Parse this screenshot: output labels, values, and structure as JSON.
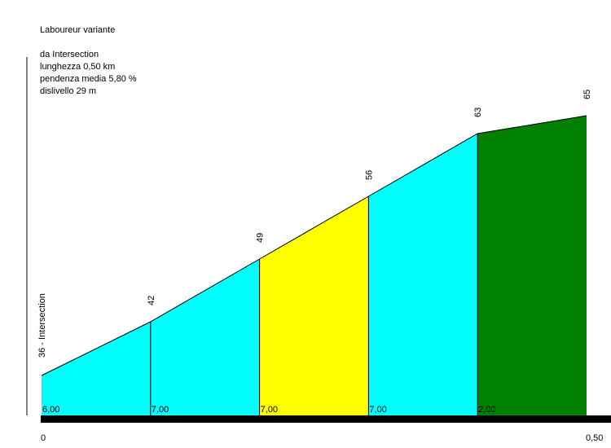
{
  "header": {
    "title": "Laboureur variante",
    "from": "da Intersection",
    "length": "lunghezza 0,50 km",
    "avg_grade": "pendenza media 5,80 %",
    "elevation_gain": "dislivello 29 m"
  },
  "chart_data": {
    "type": "area",
    "title": "Laboureur variante",
    "x_unit": "km",
    "x_labels": [
      "0",
      "0,50"
    ],
    "xlim": [
      0,
      0.5
    ],
    "ylim": [
      36,
      65
    ],
    "start_label": "36 - Intersection",
    "points": [
      {
        "x": 0.0,
        "y": 36,
        "label": "36 - Intersection"
      },
      {
        "x": 0.1,
        "y": 42,
        "label": "42"
      },
      {
        "x": 0.2,
        "y": 49,
        "label": "49"
      },
      {
        "x": 0.3,
        "y": 56,
        "label": "56"
      },
      {
        "x": 0.4,
        "y": 63,
        "label": "63"
      },
      {
        "x": 0.5,
        "y": 65,
        "label": "65"
      }
    ],
    "segments": [
      {
        "grade": "6,00",
        "color": "#00ffff"
      },
      {
        "grade": "7,00",
        "color": "#00ffff"
      },
      {
        "grade": "7,00",
        "color": "#ffff00"
      },
      {
        "grade": "7,00",
        "color": "#00ffff"
      },
      {
        "grade": "2,00",
        "color": "#008000"
      }
    ]
  }
}
